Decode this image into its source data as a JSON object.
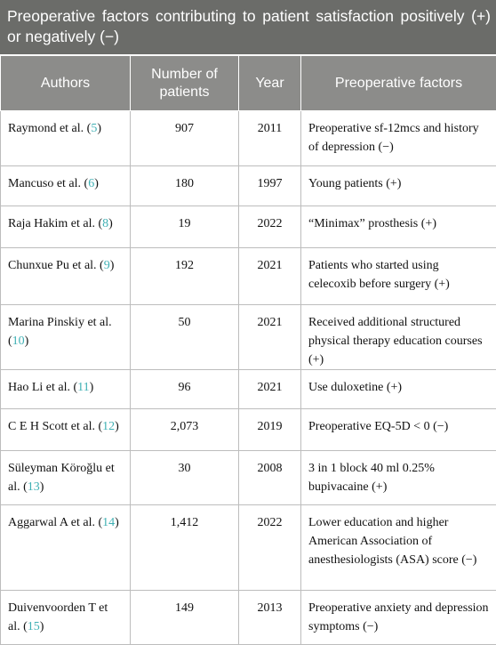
{
  "title": "Preoperative factors contributing to patient satisfaction positively (+) or negatively (−)",
  "table": {
    "header": [
      "Authors",
      "Number of patients",
      "Year",
      "Preoperative factors"
    ],
    "rows": [
      [
        {
          "author": "Raymond et al. (",
          "ref": "5",
          "close": ")"
        },
        "907",
        "2011",
        "Preoperative sf-12mcs and history of depression (−)"
      ],
      [
        {
          "author": "Mancuso et al. (",
          "ref": "6",
          "close": ")"
        },
        "180",
        "1997",
        "Young patients (+)"
      ],
      [
        {
          "author": "Raja Hakim et al. (",
          "ref": "8",
          "close": ")"
        },
        "19",
        "2022",
        "“Minimax” prosthesis (+)"
      ],
      [
        {
          "author": "Chunxue Pu et al. (",
          "ref": "9",
          "close": ")"
        },
        "192",
        "2021",
        "Patients who started using celecoxib before surgery (+)"
      ],
      [
        {
          "author": "Marina Pinskiy et al. (",
          "ref": "10",
          "close": ")"
        },
        "50",
        "2021",
        "Received additional structured physical therapy education courses (+)"
      ],
      [
        {
          "author": "Hao Li et al. (",
          "ref": "11",
          "close": ")"
        },
        "96",
        "2021",
        "Use duloxetine (+)"
      ],
      [
        {
          "author": "C E H Scott et al. (",
          "ref": "12",
          "close": ")"
        },
        "2,073",
        "2019",
        "Preoperative EQ-5D < 0 (−)"
      ],
      [
        {
          "author": "Süleyman Köroğlu et al. (",
          "ref": "13",
          "close": ")"
        },
        "30",
        "2008",
        "3 in 1 block 40 ml 0.25% bupivacaine (+)"
      ],
      [
        {
          "author": "Aggarwal A et al. (",
          "ref": "14",
          "close": ")"
        },
        "1,412",
        "2022",
        "Lower education and higher American Association of anesthesiologists (ASA) score (−)"
      ],
      [
        {
          "author": "Duivenvoorden T et al. (",
          "ref": "15",
          "close": ")"
        },
        "149",
        "2013",
        "Preoperative anxiety and depression symptoms (−)"
      ]
    ]
  }
}
